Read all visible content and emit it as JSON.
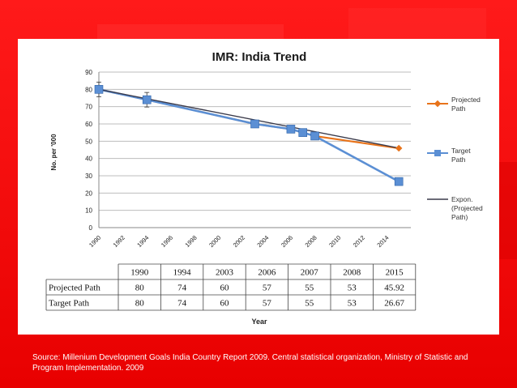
{
  "chart_data": {
    "type": "line",
    "title": "IMR: India Trend",
    "xlabel": "Year",
    "ylabel": "No. per '000",
    "ylim": [
      0,
      90
    ],
    "yticks": [
      "0",
      "10",
      "20",
      "30",
      "40",
      "50",
      "60",
      "70",
      "80",
      "90"
    ],
    "xlim": [
      1990,
      2016
    ],
    "xticks": [
      "1990",
      "1992",
      "1994",
      "1996",
      "1998",
      "2000",
      "2002",
      "2004",
      "2006",
      "2008",
      "2010",
      "2012",
      "2014"
    ],
    "legend_position": "right",
    "series": [
      {
        "name": "Projected Path",
        "color": "#e8731a",
        "x": [
          1990,
          1994,
          2003,
          2006,
          2007,
          2008,
          2015
        ],
        "values": [
          80,
          74,
          60,
          57,
          55,
          53,
          45.92
        ]
      },
      {
        "name": "Target Path",
        "color": "#5b8fd4",
        "x": [
          1990,
          1994,
          2003,
          2006,
          2007,
          2008,
          2015
        ],
        "values": [
          80,
          74,
          60,
          57,
          55,
          53,
          26.67
        ]
      },
      {
        "name": "Expon. (Projected Path)",
        "color": "#3a3a4a",
        "x": [
          1990,
          2015
        ],
        "values": [
          80,
          46
        ]
      }
    ],
    "table": {
      "header": [
        "1990",
        "1994",
        "2003",
        "2006",
        "2007",
        "2008",
        "2015"
      ],
      "rows": [
        {
          "label": "Projected Path",
          "values": [
            "80",
            "74",
            "60",
            "57",
            "55",
            "53",
            "45.92"
          ]
        },
        {
          "label": "Target Path",
          "values": [
            "80",
            "74",
            "60",
            "57",
            "55",
            "53",
            "26.67"
          ]
        }
      ]
    }
  },
  "source_text": "Source:  Millenium Development  Goals India Country Report 2009. Central statistical organization, Ministry of Statistic and Program Implementation. 2009"
}
